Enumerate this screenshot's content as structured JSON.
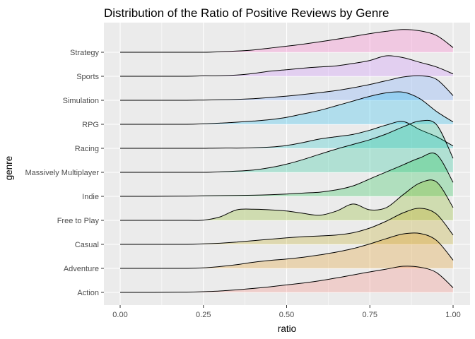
{
  "chart_data": {
    "type": "ridgeline",
    "title": "Distribution of the Ratio of Positive Reviews by Genre",
    "xlabel": "ratio",
    "ylabel": "genre",
    "xlim": [
      0,
      1
    ],
    "x_ticks": [
      "0.00",
      "0.25",
      "0.50",
      "0.75",
      "1.00"
    ],
    "grid": true,
    "legend": "none",
    "x_sample": [
      0,
      0.1,
      0.2,
      0.25,
      0.3,
      0.35,
      0.4,
      0.45,
      0.5,
      0.55,
      0.6,
      0.65,
      0.7,
      0.75,
      0.8,
      0.85,
      0.9,
      0.95,
      1.0
    ],
    "series": [
      {
        "name": "Action",
        "color": "#F8766D",
        "density": [
          0,
          0,
          0.01,
          0.03,
          0.06,
          0.11,
          0.17,
          0.24,
          0.32,
          0.4,
          0.5,
          0.62,
          0.75,
          0.88,
          1.0,
          1.12,
          1.08,
          0.85,
          0.2
        ]
      },
      {
        "name": "Adventure",
        "color": "#DE8C00",
        "density": [
          0,
          0,
          0,
          0.02,
          0.08,
          0.16,
          0.26,
          0.34,
          0.4,
          0.48,
          0.58,
          0.7,
          0.85,
          1.05,
          1.28,
          1.48,
          1.5,
          1.2,
          0.35
        ]
      },
      {
        "name": "Casual",
        "color": "#B79F00",
        "density": [
          0,
          0,
          0,
          0.02,
          0.05,
          0.1,
          0.16,
          0.22,
          0.28,
          0.33,
          0.36,
          0.4,
          0.5,
          0.7,
          1.0,
          1.35,
          1.55,
          1.3,
          0.4
        ]
      },
      {
        "name": "Free to Play",
        "color": "#7CAE00",
        "density": [
          0,
          0,
          0,
          0.01,
          0.15,
          0.45,
          0.48,
          0.45,
          0.4,
          0.3,
          0.22,
          0.4,
          0.7,
          0.45,
          0.55,
          1.1,
          1.6,
          1.65,
          0.55
        ]
      },
      {
        "name": "Indie",
        "color": "#00BA38",
        "density": [
          0,
          0,
          0.01,
          0.02,
          0.03,
          0.04,
          0.05,
          0.07,
          0.1,
          0.14,
          0.18,
          0.28,
          0.45,
          0.75,
          1.05,
          1.35,
          1.65,
          1.8,
          0.6
        ]
      },
      {
        "name": "Massively Multiplayer",
        "color": "#00C08B",
        "density": [
          0,
          0,
          0,
          0,
          0.02,
          0.05,
          0.1,
          0.2,
          0.35,
          0.55,
          0.78,
          1.0,
          1.2,
          1.4,
          1.65,
          1.95,
          2.2,
          2.05,
          0.6
        ]
      },
      {
        "name": "Racing",
        "color": "#00BFC4",
        "density": [
          0,
          0,
          0,
          0,
          0.01,
          0.01,
          0.02,
          0.05,
          0.12,
          0.25,
          0.4,
          0.5,
          0.6,
          0.78,
          1.0,
          1.15,
          0.8,
          0.5,
          0.1
        ]
      },
      {
        "name": "RPG",
        "color": "#00B4F0",
        "density": [
          0,
          0,
          0,
          0.02,
          0.05,
          0.09,
          0.14,
          0.2,
          0.3,
          0.45,
          0.6,
          0.8,
          1.0,
          1.2,
          1.35,
          1.38,
          1.1,
          0.55,
          0.1
        ]
      },
      {
        "name": "Simulation",
        "color": "#619CFF",
        "density": [
          0,
          0,
          0,
          0.01,
          0.02,
          0.04,
          0.07,
          0.12,
          0.18,
          0.25,
          0.33,
          0.42,
          0.54,
          0.68,
          0.84,
          1.0,
          1.05,
          0.9,
          0.2
        ]
      },
      {
        "name": "Sports",
        "color": "#C77CFF",
        "density": [
          0,
          0,
          0,
          0.02,
          0.02,
          0.05,
          0.12,
          0.22,
          0.28,
          0.35,
          0.4,
          0.45,
          0.55,
          0.68,
          0.88,
          0.8,
          0.6,
          0.4,
          0.1
        ]
      },
      {
        "name": "Strategy",
        "color": "#FF61C3",
        "density": [
          0,
          0,
          0,
          0,
          0.02,
          0.05,
          0.1,
          0.18,
          0.26,
          0.35,
          0.45,
          0.56,
          0.68,
          0.8,
          0.9,
          0.98,
          0.92,
          0.72,
          0.2
        ]
      }
    ]
  }
}
